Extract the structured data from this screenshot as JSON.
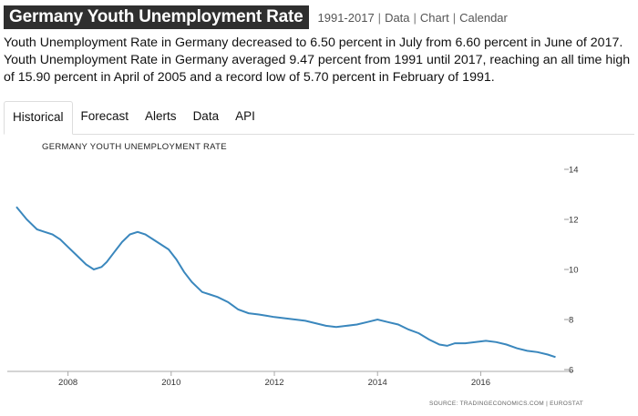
{
  "header": {
    "title": "Germany Youth Unemployment Rate",
    "links": [
      "1991-2017",
      "Data",
      "Chart",
      "Calendar"
    ]
  },
  "description": "Youth Unemployment Rate in Germany decreased to 6.50 percent in July from 6.60 percent in June of 2017. Youth Unemployment Rate in Germany averaged 9.47 percent from 1991 until 2017, reaching an all time high of 15.90 percent in April of 2005 and a record low of 5.70 percent in February of 1991.",
  "tabs": [
    "Historical",
    "Forecast",
    "Alerts",
    "Data",
    "API"
  ],
  "active_tab": "Historical",
  "colors": {
    "line": "#3a87bd",
    "title_bg": "#2f2f2f"
  },
  "chart_data": {
    "type": "line",
    "title": "GERMANY YOUTH UNEMPLOYMENT RATE",
    "source": "SOURCE: TRADINGECONOMICS.COM | EUROSTAT",
    "ylim": [
      6,
      14
    ],
    "xlim": [
      2007,
      2017.6
    ],
    "yticks": [
      6,
      8,
      10,
      12,
      14
    ],
    "xticks": [
      2008,
      2010,
      2012,
      2014,
      2016
    ],
    "y_axis_position": "right",
    "grid": false,
    "series": [
      {
        "x": [
          2007.0,
          2007.2,
          2007.4,
          2007.55,
          2007.7,
          2007.85,
          2008.0,
          2008.15,
          2008.35,
          2008.5,
          2008.65,
          2008.75,
          2008.9,
          2009.05,
          2009.2,
          2009.35,
          2009.5,
          2009.65,
          2009.8,
          2009.95,
          2010.1,
          2010.25,
          2010.4,
          2010.6,
          2010.75,
          2010.9,
          2011.1,
          2011.3,
          2011.5,
          2011.7,
          2011.85,
          2012.0,
          2012.2,
          2012.4,
          2012.6,
          2012.8,
          2013.0,
          2013.2,
          2013.4,
          2013.6,
          2013.8,
          2014.0,
          2014.2,
          2014.4,
          2014.6,
          2014.8,
          2015.0,
          2015.2,
          2015.35,
          2015.5,
          2015.7,
          2015.9,
          2016.1,
          2016.3,
          2016.5,
          2016.7,
          2016.9,
          2017.1,
          2017.3,
          2017.45
        ],
        "y": [
          12.5,
          12.0,
          11.6,
          11.5,
          11.4,
          11.2,
          10.9,
          10.6,
          10.2,
          10.0,
          10.1,
          10.3,
          10.7,
          11.1,
          11.4,
          11.5,
          11.4,
          11.2,
          11.0,
          10.8,
          10.4,
          9.9,
          9.5,
          9.1,
          9.0,
          8.9,
          8.7,
          8.4,
          8.25,
          8.2,
          8.15,
          8.1,
          8.05,
          8.0,
          7.95,
          7.85,
          7.75,
          7.7,
          7.75,
          7.8,
          7.9,
          8.0,
          7.9,
          7.8,
          7.6,
          7.45,
          7.2,
          7.0,
          6.95,
          7.05,
          7.05,
          7.1,
          7.15,
          7.1,
          7.0,
          6.85,
          6.75,
          6.7,
          6.6,
          6.5
        ]
      }
    ]
  }
}
